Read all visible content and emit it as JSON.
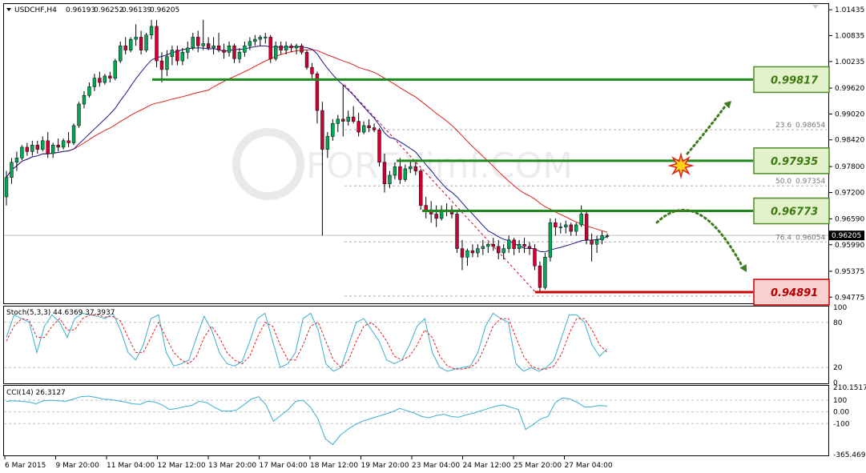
{
  "header": {
    "symbol": "USDCHF,H4",
    "open": "0.96193",
    "high": "0.96252",
    "low": "0.96139",
    "close": "0.96205"
  },
  "watermark": "FOREXimf.COM",
  "colors": {
    "bull": "#00aa55",
    "bear": "#cc0033",
    "ma_fast": "#1a1a8c",
    "ma_slow": "#e02020",
    "level_green": "#1e8a1e",
    "level_red": "#cc0000",
    "tag_green_fill": "#e4f2cc",
    "tag_red_fill": "#f8d0d0",
    "osc_line": "#3aaed0",
    "signal_line": "#e02020",
    "arrow": "#3e7d1e"
  },
  "price_axis": {
    "ticks": [
      "1.01435",
      "1.00835",
      "1.00235",
      "0.99620",
      "0.99020",
      "0.98420",
      "0.97800",
      "0.97200",
      "0.96590",
      "0.95990",
      "0.95375",
      "0.94775"
    ],
    "current_price": "0.96205"
  },
  "levels": [
    {
      "price": 0.99817,
      "label": "0.99817",
      "kind": "resistance"
    },
    {
      "price": 0.97935,
      "label": "0.97935",
      "kind": "resistance"
    },
    {
      "price": 0.96773,
      "label": "0.96773",
      "kind": "resistance"
    },
    {
      "price": 0.94891,
      "label": "0.94891",
      "kind": "support"
    }
  ],
  "fibonacci": [
    {
      "ratio": "23.6",
      "price": "0.98654",
      "value": 0.98654
    },
    {
      "ratio": "50.0",
      "price": "0.97354",
      "value": 0.97354
    },
    {
      "ratio": "76.4",
      "price": "0.96054",
      "value": 0.96054
    }
  ],
  "time_axis": [
    "6 Mar 2015",
    "9 Mar 20:00",
    "11 Mar 04:00",
    "12 Mar 12:00",
    "13 Mar 20:00",
    "17 Mar 04:00",
    "18 Mar 12:00",
    "19 Mar 20:00",
    "23 Mar 04:00",
    "24 Mar 12:00",
    "25 Mar 20:00",
    "27 Mar 04:00"
  ],
  "stoch": {
    "label": "Stoch(5,3,3) 44.6369 37.3937",
    "ticks": [
      "100",
      "80",
      "20",
      "0"
    ]
  },
  "cci": {
    "label": "CCI(14) 26.3127",
    "ticks": [
      "210.1517",
      "100",
      "0.00",
      "-100",
      "-365.469"
    ]
  },
  "chart_data": {
    "type": "candlestick",
    "symbol": "USDCHF",
    "timeframe": "H4",
    "ylim": [
      0.9465,
      1.0155
    ],
    "candles": [
      [
        0.971,
        0.977,
        0.969,
        0.9755
      ],
      [
        0.9755,
        0.98,
        0.974,
        0.979
      ],
      [
        0.979,
        0.9815,
        0.977,
        0.98
      ],
      [
        0.98,
        0.983,
        0.9795,
        0.9825
      ],
      [
        0.9825,
        0.9835,
        0.9805,
        0.9815
      ],
      [
        0.9815,
        0.984,
        0.9805,
        0.983
      ],
      [
        0.983,
        0.984,
        0.981,
        0.982
      ],
      [
        0.982,
        0.985,
        0.9815,
        0.984
      ],
      [
        0.984,
        0.986,
        0.98,
        0.981
      ],
      [
        0.981,
        0.9835,
        0.98,
        0.983
      ],
      [
        0.983,
        0.9845,
        0.9815,
        0.9825
      ],
      [
        0.9825,
        0.9845,
        0.982,
        0.984
      ],
      [
        0.984,
        0.986,
        0.9825,
        0.9835
      ],
      [
        0.9835,
        0.988,
        0.983,
        0.9875
      ],
      [
        0.9875,
        0.993,
        0.987,
        0.9925
      ],
      [
        0.9925,
        0.9955,
        0.9915,
        0.9945
      ],
      [
        0.9945,
        0.9975,
        0.994,
        0.9965
      ],
      [
        0.9965,
        0.9995,
        0.9955,
        0.9985
      ],
      [
        0.9985,
        1.0,
        0.9965,
        0.9975
      ],
      [
        0.9975,
        0.9995,
        0.997,
        0.999
      ],
      [
        0.999,
        1.0,
        0.9975,
        0.9985
      ],
      [
        0.9985,
        1.003,
        0.998,
        1.0025
      ],
      [
        1.0025,
        1.007,
        1.002,
        1.006
      ],
      [
        1.006,
        1.008,
        1.004,
        1.005
      ],
      [
        1.005,
        1.008,
        1.0045,
        1.0075
      ],
      [
        1.0075,
        1.011,
        1.006,
        1.008
      ],
      [
        1.008,
        1.0095,
        1.004,
        1.005
      ],
      [
        1.005,
        1.009,
        1.0045,
        1.0085
      ],
      [
        1.0085,
        1.012,
        1.0075,
        1.0105
      ],
      [
        1.0105,
        1.012,
        1.001,
        1.0025
      ],
      [
        1.0025,
        1.0045,
        0.9975,
        1.0005
      ],
      [
        1.0005,
        1.005,
        0.999,
        1.0035
      ],
      [
        1.0035,
        1.006,
        1.0015,
        1.005
      ],
      [
        1.005,
        1.006,
        1.0015,
        1.0025
      ],
      [
        1.0025,
        1.0055,
        1.0015,
        1.0045
      ],
      [
        1.0045,
        1.007,
        1.003,
        1.0055
      ],
      [
        1.0055,
        1.009,
        1.005,
        1.008
      ],
      [
        1.008,
        1.0095,
        1.0045,
        1.006
      ],
      [
        1.006,
        1.012,
        1.005,
        1.0065
      ],
      [
        1.0065,
        1.008,
        1.005,
        1.0055
      ],
      [
        1.0055,
        1.008,
        1.004,
        1.006
      ],
      [
        1.006,
        1.009,
        1.0045,
        1.005
      ],
      [
        1.005,
        1.0065,
        1.003,
        1.0045
      ],
      [
        1.0045,
        1.007,
        1.0035,
        1.006
      ],
      [
        1.006,
        1.0065,
        1.002,
        1.003
      ],
      [
        1.003,
        1.0055,
        1.002,
        1.0045
      ],
      [
        1.0045,
        1.007,
        1.0035,
        1.006
      ],
      [
        1.006,
        1.008,
        1.005,
        1.007
      ],
      [
        1.007,
        1.0085,
        1.006,
        1.0075
      ],
      [
        1.0075,
        1.0085,
        1.006,
        1.008
      ],
      [
        1.008,
        1.009,
        1.0065,
        1.008
      ],
      [
        1.008,
        1.0085,
        1.002,
        1.003
      ],
      [
        1.003,
        1.007,
        1.0025,
        1.006
      ],
      [
        1.006,
        1.007,
        1.004,
        1.005
      ],
      [
        1.005,
        1.007,
        1.004,
        1.006
      ],
      [
        1.006,
        1.0065,
        1.0045,
        1.0055
      ],
      [
        1.0055,
        1.0065,
        1.004,
        1.006
      ],
      [
        1.006,
        1.0065,
        1.004,
        1.0045
      ],
      [
        1.0045,
        1.005,
        1.0005,
        1.001
      ],
      [
        1.001,
        1.002,
        0.9985,
        0.9995
      ],
      [
        0.9995,
        1.0,
        0.988,
        0.991
      ],
      [
        0.991,
        0.993,
        0.962,
        0.982
      ],
      [
        0.982,
        0.986,
        0.98,
        0.985
      ],
      [
        0.985,
        0.989,
        0.984,
        0.988
      ],
      [
        0.988,
        0.99,
        0.986,
        0.989
      ],
      [
        0.989,
        0.997,
        0.985,
        0.9885
      ],
      [
        0.9885,
        0.991,
        0.9875,
        0.9895
      ],
      [
        0.9895,
        0.992,
        0.988,
        0.9885
      ],
      [
        0.9885,
        0.9905,
        0.985,
        0.986
      ],
      [
        0.986,
        0.9885,
        0.9855,
        0.9875
      ],
      [
        0.9875,
        0.989,
        0.986,
        0.987
      ],
      [
        0.987,
        0.988,
        0.986,
        0.9865
      ],
      [
        0.9865,
        0.987,
        0.978,
        0.979
      ],
      [
        0.979,
        0.981,
        0.972,
        0.974
      ],
      [
        0.974,
        0.977,
        0.973,
        0.976
      ],
      [
        0.976,
        0.979,
        0.975,
        0.978
      ],
      [
        0.978,
        0.98,
        0.974,
        0.975
      ],
      [
        0.975,
        0.9785,
        0.9745,
        0.9775
      ],
      [
        0.9775,
        0.9795,
        0.9765,
        0.978
      ],
      [
        0.978,
        0.979,
        0.976,
        0.977
      ],
      [
        0.977,
        0.9775,
        0.968,
        0.969
      ],
      [
        0.969,
        0.971,
        0.966,
        0.968
      ],
      [
        0.968,
        0.97,
        0.965,
        0.967
      ],
      [
        0.967,
        0.969,
        0.964,
        0.966
      ],
      [
        0.966,
        0.969,
        0.9655,
        0.968
      ],
      [
        0.968,
        0.9695,
        0.9665,
        0.968
      ],
      [
        0.968,
        0.969,
        0.966,
        0.967
      ],
      [
        0.967,
        0.968,
        0.958,
        0.959
      ],
      [
        0.959,
        0.961,
        0.954,
        0.957
      ],
      [
        0.957,
        0.959,
        0.955,
        0.9585
      ],
      [
        0.9585,
        0.96,
        0.957,
        0.958
      ],
      [
        0.958,
        0.96,
        0.957,
        0.959
      ],
      [
        0.959,
        0.961,
        0.9575,
        0.9595
      ],
      [
        0.9595,
        0.9605,
        0.958,
        0.96
      ],
      [
        0.96,
        0.9615,
        0.9585,
        0.9595
      ],
      [
        0.9595,
        0.961,
        0.9565,
        0.958
      ],
      [
        0.958,
        0.96,
        0.9565,
        0.959
      ],
      [
        0.959,
        0.962,
        0.958,
        0.961
      ],
      [
        0.961,
        0.9615,
        0.9575,
        0.959
      ],
      [
        0.959,
        0.961,
        0.958,
        0.96
      ],
      [
        0.96,
        0.9615,
        0.958,
        0.9595
      ],
      [
        0.9595,
        0.9605,
        0.9575,
        0.959
      ],
      [
        0.959,
        0.96,
        0.954,
        0.955
      ],
      [
        0.955,
        0.956,
        0.949,
        0.95
      ],
      [
        0.95,
        0.958,
        0.9495,
        0.957
      ],
      [
        0.957,
        0.966,
        0.956,
        0.965
      ],
      [
        0.965,
        0.966,
        0.962,
        0.964
      ],
      [
        0.964,
        0.965,
        0.9625,
        0.964
      ],
      [
        0.964,
        0.9655,
        0.9625,
        0.9645
      ],
      [
        0.9645,
        0.965,
        0.962,
        0.963
      ],
      [
        0.963,
        0.965,
        0.962,
        0.9645
      ],
      [
        0.9645,
        0.969,
        0.964,
        0.967
      ],
      [
        0.967,
        0.968,
        0.96,
        0.961
      ],
      [
        0.961,
        0.9625,
        0.956,
        0.96
      ],
      [
        0.96,
        0.962,
        0.958,
        0.961
      ],
      [
        0.961,
        0.963,
        0.96,
        0.962
      ],
      [
        0.9619,
        0.9625,
        0.9614,
        0.962
      ]
    ],
    "stoch_k": [
      60,
      90,
      85,
      80,
      40,
      75,
      90,
      80,
      60,
      85,
      92,
      90,
      88,
      85,
      92,
      70,
      40,
      30,
      50,
      85,
      90,
      40,
      22,
      25,
      30,
      60,
      88,
      70,
      40,
      25,
      22,
      28,
      55,
      85,
      92,
      55,
      20,
      25,
      40,
      85,
      92,
      70,
      25,
      15,
      20,
      50,
      80,
      85,
      70,
      55,
      30,
      25,
      30,
      50,
      75,
      85,
      40,
      20,
      15,
      18,
      20,
      22,
      40,
      75,
      92,
      85,
      80,
      25,
      15,
      20,
      15,
      20,
      30,
      60,
      90,
      90,
      80,
      50,
      35,
      45
    ],
    "stoch_d": [
      55,
      75,
      85,
      83,
      60,
      60,
      75,
      85,
      70,
      70,
      85,
      90,
      90,
      87,
      88,
      82,
      60,
      40,
      40,
      60,
      80,
      60,
      40,
      30,
      25,
      35,
      60,
      75,
      60,
      40,
      30,
      25,
      35,
      60,
      80,
      75,
      50,
      30,
      30,
      50,
      75,
      80,
      55,
      30,
      20,
      30,
      55,
      75,
      80,
      70,
      55,
      35,
      30,
      35,
      50,
      70,
      60,
      35,
      22,
      18,
      18,
      20,
      28,
      50,
      75,
      85,
      85,
      60,
      35,
      22,
      18,
      18,
      22,
      38,
      65,
      85,
      85,
      70,
      50,
      40
    ],
    "cci": [
      90,
      95,
      90,
      85,
      70,
      95,
      100,
      95,
      90,
      110,
      130,
      135,
      125,
      110,
      105,
      95,
      85,
      70,
      65,
      90,
      85,
      60,
      20,
      30,
      45,
      55,
      90,
      80,
      40,
      10,
      5,
      15,
      60,
      110,
      130,
      60,
      -80,
      -30,
      20,
      90,
      100,
      40,
      -60,
      -230,
      -280,
      -200,
      -150,
      -110,
      -80,
      -60,
      -40,
      -20,
      0,
      30,
      10,
      -10,
      -40,
      -50,
      -30,
      -20,
      -40,
      -45,
      -25,
      -10,
      10,
      30,
      50,
      60,
      40,
      20,
      -150,
      -110,
      -60,
      -40,
      80,
      120,
      110,
      80,
      40,
      45,
      55,
      50
    ]
  }
}
